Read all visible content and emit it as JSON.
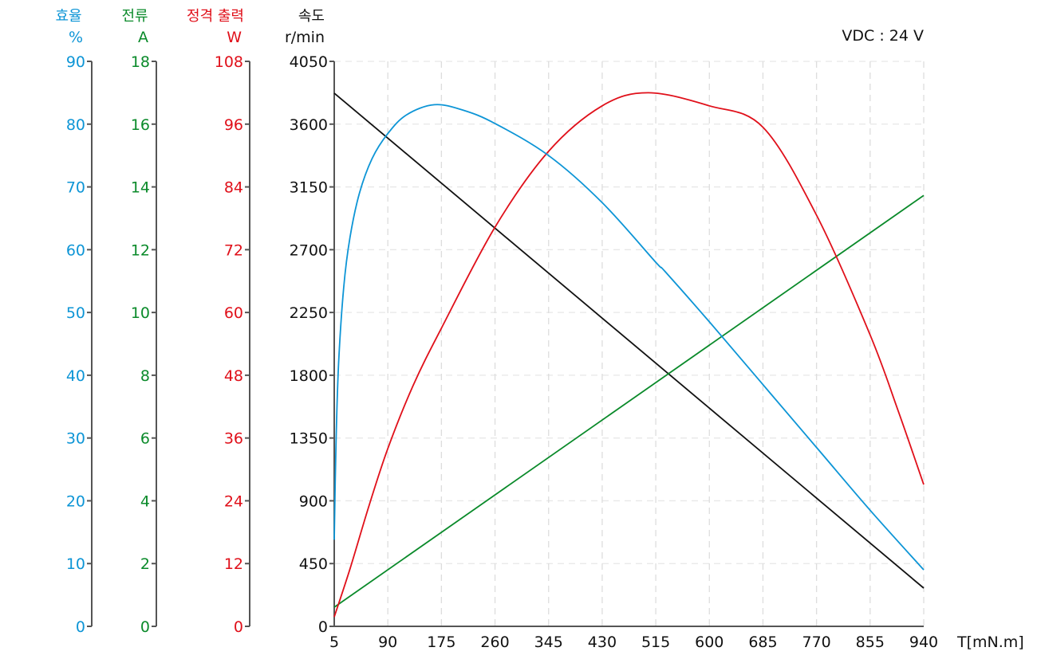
{
  "annotation": "VDC : 24 V",
  "colors": {
    "efficiency": "#0d95d6",
    "current": "#0a8a2a",
    "power": "#e0101a",
    "speed": "#111111",
    "axis": "#555555",
    "grid": "#dddddd"
  },
  "axes": {
    "efficiency": {
      "title": "효율",
      "unit": "%",
      "ticks": [
        "0",
        "10",
        "20",
        "30",
        "40",
        "50",
        "60",
        "70",
        "80",
        "90"
      ],
      "min": 0,
      "max": 90
    },
    "current": {
      "title": "전류",
      "unit": "A",
      "ticks": [
        "0",
        "2",
        "4",
        "6",
        "8",
        "10",
        "12",
        "14",
        "16",
        "18"
      ],
      "min": 0,
      "max": 18
    },
    "power": {
      "title": "정격 출력",
      "unit": "W",
      "ticks": [
        "0",
        "12",
        "24",
        "36",
        "48",
        "60",
        "72",
        "84",
        "96",
        "108"
      ],
      "min": 0,
      "max": 108
    },
    "speed": {
      "title": "속도",
      "unit": "r/min",
      "ticks": [
        "0",
        "450",
        "900",
        "1350",
        "1800",
        "2250",
        "2700",
        "3150",
        "3600",
        "4050"
      ],
      "min": 0,
      "max": 4050
    },
    "torque": {
      "label": "T[mN.m]",
      "ticks": [
        "5",
        "90",
        "175",
        "260",
        "345",
        "430",
        "515",
        "600",
        "685",
        "770",
        "855",
        "940"
      ],
      "min": 5,
      "max": 940
    }
  },
  "chart_data": {
    "type": "line",
    "title": "",
    "annotation": "VDC : 24 V",
    "xlabel": "T[mN.m]",
    "xlim": [
      5,
      940
    ],
    "x_ticks": [
      5,
      90,
      175,
      260,
      345,
      430,
      515,
      600,
      685,
      770,
      855,
      940
    ],
    "grid": true,
    "y_axes": [
      {
        "name": "효율",
        "unit": "%",
        "ylim": [
          0,
          90
        ]
      },
      {
        "name": "전류",
        "unit": "A",
        "ylim": [
          0,
          18
        ]
      },
      {
        "name": "정격 출력",
        "unit": "W",
        "ylim": [
          0,
          108
        ]
      },
      {
        "name": "속도",
        "unit": "r/min",
        "ylim": [
          0,
          4050
        ]
      }
    ],
    "series": [
      {
        "name": "속도",
        "unit": "r/min",
        "axis": "speed",
        "x": [
          5,
          940
        ],
        "values": [
          3822,
          274
        ]
      },
      {
        "name": "전류",
        "unit": "A",
        "axis": "current",
        "x": [
          5,
          940
        ],
        "values": [
          0.61,
          13.73
        ]
      },
      {
        "name": "정격 출력",
        "unit": "W",
        "axis": "power",
        "x": [
          5,
          30,
          60,
          90,
          130,
          175,
          260,
          345,
          430,
          503,
          600,
          685,
          770,
          855,
          900,
          940
        ],
        "values": [
          1.8,
          11,
          23,
          34,
          46,
          57,
          76.3,
          90.8,
          99.5,
          102,
          99.5,
          95.4,
          78.6,
          55.7,
          41,
          27.1
        ]
      },
      {
        "name": "효율",
        "unit": "%",
        "axis": "efficiency",
        "x": [
          5,
          8,
          12,
          20,
          30,
          45,
          65,
          90,
          120,
          164,
          210,
          260,
          345,
          430,
          515,
          530,
          600,
          685,
          770,
          855,
          940
        ],
        "values": [
          13.8,
          30,
          42,
          54,
          62,
          69,
          74.5,
          78.5,
          81.5,
          83.1,
          82.2,
          80.1,
          75,
          67.5,
          58,
          56.5,
          48.5,
          38.5,
          28.5,
          18.5,
          9.0
        ]
      }
    ]
  }
}
